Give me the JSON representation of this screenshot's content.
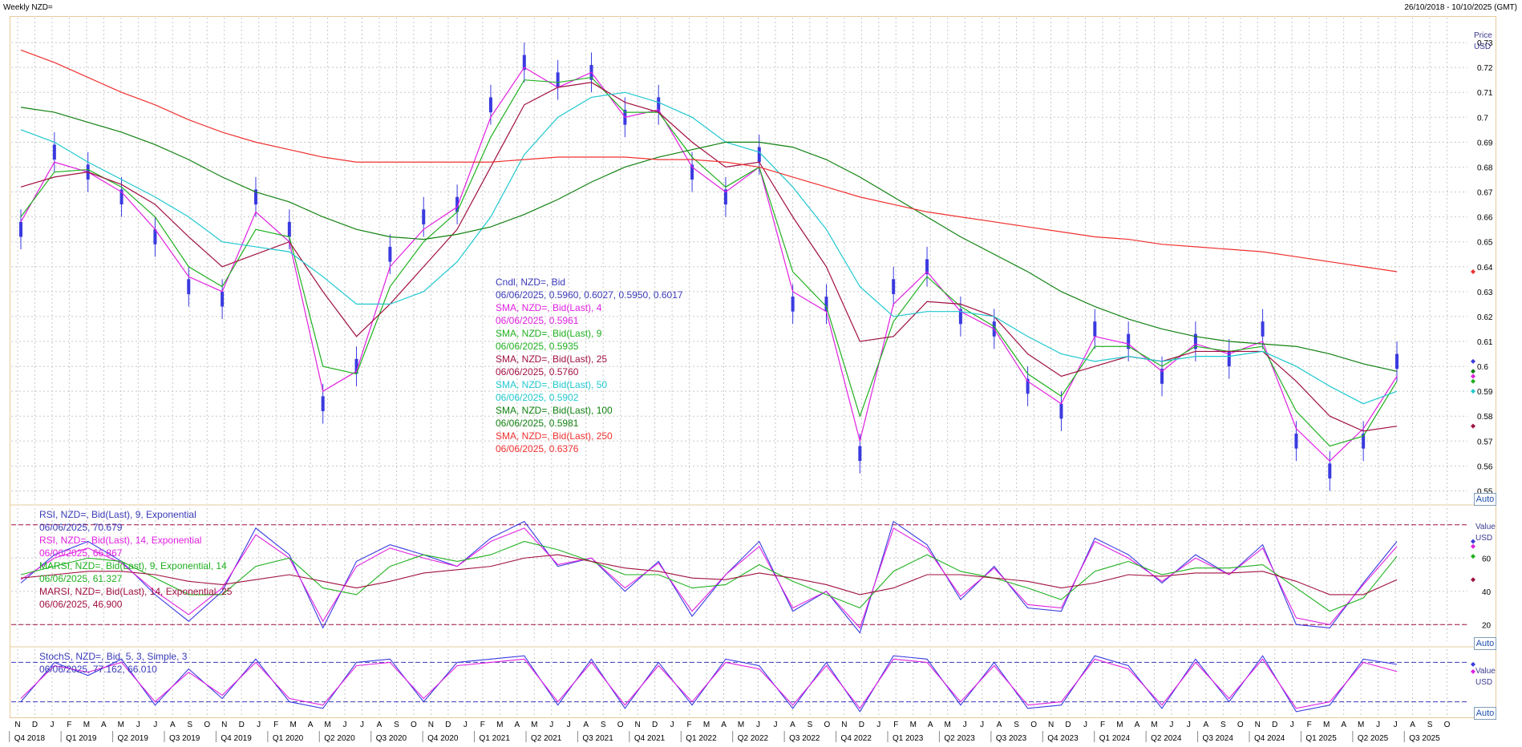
{
  "window": {
    "title": "Weekly NZD=",
    "date_range": "26/10/2018 - 10/10/2025 (GMT)"
  },
  "price_panel": {
    "unit_top": "Price",
    "unit_bottom": "USD",
    "auto_label": "Auto",
    "legend": [
      {
        "text": "Cndl, NZD=, Bid",
        "color": "#3a3ab8"
      },
      {
        "text": "06/06/2025, 0.5960, 0.6027, 0.5950, 0.6017",
        "color": "#3a3ab8"
      },
      {
        "text": "SMA, NZD=, Bid(Last), 4",
        "color": "#e020e0"
      },
      {
        "text": "06/06/2025, 0.5961",
        "color": "#e020e0"
      },
      {
        "text": "SMA, NZD=, Bid(Last), 9",
        "color": "#20b020"
      },
      {
        "text": "06/06/2025, 0.5935",
        "color": "#20b020"
      },
      {
        "text": "SMA, NZD=, Bid(Last), 25",
        "color": "#a01040"
      },
      {
        "text": "06/06/2025, 0.5760",
        "color": "#a01040"
      },
      {
        "text": "SMA, NZD=, Bid(Last), 50",
        "color": "#20c8d0"
      },
      {
        "text": "06/06/2025, 0.5902",
        "color": "#20c8d0"
      },
      {
        "text": "SMA, NZD=, Bid(Last), 100",
        "color": "#108010"
      },
      {
        "text": "06/06/2025, 0.5981",
        "color": "#108010"
      },
      {
        "text": "SMA, NZD=, Bid(Last), 250",
        "color": "#f03030"
      },
      {
        "text": "06/06/2025, 0.6376",
        "color": "#f03030"
      }
    ]
  },
  "rsi_panel": {
    "unit_top": "Value",
    "unit_bottom": "USD",
    "auto_label": "Auto",
    "legend": [
      {
        "text": "RSI, NZD=, Bid(Last), 9, Exponential",
        "color": "#3a3ab8"
      },
      {
        "text": "06/06/2025, 70.679",
        "color": "#3a3ab8"
      },
      {
        "text": "RSI, NZD=, Bid(Last), 14, Exponential",
        "color": "#e020e0"
      },
      {
        "text": "06/06/2025, 66.867",
        "color": "#e020e0"
      },
      {
        "text": "MARSI, NZD=, Bid(Last), 9, Exponential, 14",
        "color": "#20b020"
      },
      {
        "text": "06/06/2025, 61.327",
        "color": "#20b020"
      },
      {
        "text": "MARSI, NZD=, Bid(Last), 14, Exponential, 25",
        "color": "#a01040"
      },
      {
        "text": "06/06/2025, 46.900",
        "color": "#a01040"
      }
    ]
  },
  "stoch_panel": {
    "unit_top": "Value",
    "unit_bottom": "USD",
    "auto_label": "Auto",
    "legend": [
      {
        "text": "StochS, NZD=, Bid, 5, 3, Simple, 3",
        "color": "#3a3ab8"
      },
      {
        "text": "06/06/2025, 77.162, 66.010",
        "color": "#3a3ab8"
      }
    ]
  },
  "colors": {
    "candle": "#3a3ae0",
    "sma4": "#e020e0",
    "sma9": "#20b020",
    "sma25": "#a01040",
    "sma50": "#20c8d0",
    "sma100": "#108010",
    "sma250": "#f03030",
    "rsi9": "#3a3ae0",
    "rsi14": "#e020e0",
    "marsi9": "#20b020",
    "marsi14": "#a01040",
    "stoch_k": "#3a3ae0",
    "stoch_d": "#e020e0",
    "grid": "#c8c8c8",
    "frame": "#e7c99b"
  },
  "chart_data": [
    {
      "type": "line",
      "title": "Weekly NZD=",
      "ylabel": "Price USD",
      "ylim": [
        0.545,
        0.74
      ],
      "yticks": [
        0.55,
        0.56,
        0.57,
        0.58,
        0.59,
        0.6,
        0.61,
        0.62,
        0.63,
        0.64,
        0.65,
        0.66,
        0.67,
        0.68,
        0.69,
        0.7,
        0.71,
        0.72,
        0.73
      ],
      "grid": true,
      "x": [
        "2018-10",
        "2018-12",
        "2019-02",
        "2019-04",
        "2019-06",
        "2019-08",
        "2019-10",
        "2019-12",
        "2020-02",
        "2020-03",
        "2020-04",
        "2020-06",
        "2020-08",
        "2020-10",
        "2020-12",
        "2021-02",
        "2021-04",
        "2021-06",
        "2021-08",
        "2021-10",
        "2021-12",
        "2022-02",
        "2022-04",
        "2022-06",
        "2022-08",
        "2022-10",
        "2022-12",
        "2023-02",
        "2023-04",
        "2023-06",
        "2023-08",
        "2023-10",
        "2023-12",
        "2024-02",
        "2024-04",
        "2024-06",
        "2024-08",
        "2024-10",
        "2024-12",
        "2025-02",
        "2025-04",
        "2025-06"
      ],
      "series": [
        {
          "name": "Cndl, NZD=, Bid",
          "values": [
            0.655,
            0.686,
            0.678,
            0.668,
            0.652,
            0.632,
            0.627,
            0.668,
            0.655,
            0.585,
            0.6,
            0.645,
            0.66,
            0.665,
            0.705,
            0.722,
            0.715,
            0.718,
            0.7,
            0.705,
            0.678,
            0.668,
            0.685,
            0.625,
            0.625,
            0.565,
            0.632,
            0.64,
            0.62,
            0.615,
            0.592,
            0.582,
            0.615,
            0.61,
            0.596,
            0.61,
            0.603,
            0.615,
            0.57,
            0.558,
            0.57,
            0.602
          ]
        },
        {
          "name": "SMA, NZD=, Bid(Last), 4",
          "values": [
            0.658,
            0.682,
            0.678,
            0.67,
            0.655,
            0.636,
            0.63,
            0.662,
            0.65,
            0.59,
            0.598,
            0.64,
            0.655,
            0.664,
            0.7,
            0.72,
            0.712,
            0.718,
            0.7,
            0.703,
            0.68,
            0.67,
            0.68,
            0.63,
            0.622,
            0.57,
            0.625,
            0.638,
            0.622,
            0.615,
            0.594,
            0.585,
            0.612,
            0.609,
            0.598,
            0.609,
            0.605,
            0.61,
            0.575,
            0.562,
            0.575,
            0.596
          ]
        },
        {
          "name": "SMA, NZD=, Bid(Last), 9",
          "values": [
            0.66,
            0.678,
            0.679,
            0.672,
            0.66,
            0.64,
            0.632,
            0.655,
            0.652,
            0.6,
            0.597,
            0.632,
            0.65,
            0.662,
            0.692,
            0.715,
            0.714,
            0.716,
            0.702,
            0.702,
            0.684,
            0.672,
            0.68,
            0.638,
            0.624,
            0.58,
            0.618,
            0.636,
            0.624,
            0.616,
            0.597,
            0.588,
            0.608,
            0.608,
            0.6,
            0.608,
            0.606,
            0.608,
            0.582,
            0.568,
            0.572,
            0.594
          ]
        },
        {
          "name": "SMA, NZD=, Bid(Last), 25",
          "values": [
            0.672,
            0.676,
            0.678,
            0.673,
            0.665,
            0.652,
            0.64,
            0.645,
            0.65,
            0.63,
            0.612,
            0.625,
            0.64,
            0.655,
            0.68,
            0.705,
            0.712,
            0.714,
            0.706,
            0.702,
            0.69,
            0.68,
            0.682,
            0.66,
            0.64,
            0.61,
            0.612,
            0.626,
            0.625,
            0.62,
            0.605,
            0.596,
            0.6,
            0.604,
            0.602,
            0.606,
            0.606,
            0.606,
            0.594,
            0.58,
            0.574,
            0.576
          ]
        },
        {
          "name": "SMA, NZD=, Bid(Last), 50",
          "values": [
            0.695,
            0.69,
            0.682,
            0.675,
            0.668,
            0.66,
            0.65,
            0.648,
            0.646,
            0.636,
            0.625,
            0.625,
            0.63,
            0.642,
            0.66,
            0.685,
            0.7,
            0.708,
            0.71,
            0.706,
            0.7,
            0.69,
            0.686,
            0.672,
            0.655,
            0.632,
            0.62,
            0.622,
            0.622,
            0.62,
            0.612,
            0.605,
            0.602,
            0.604,
            0.602,
            0.604,
            0.604,
            0.606,
            0.6,
            0.592,
            0.585,
            0.59
          ]
        },
        {
          "name": "SMA, NZD=, Bid(Last), 100",
          "values": [
            0.704,
            0.702,
            0.698,
            0.694,
            0.689,
            0.683,
            0.676,
            0.67,
            0.666,
            0.66,
            0.655,
            0.652,
            0.651,
            0.653,
            0.656,
            0.661,
            0.667,
            0.674,
            0.68,
            0.684,
            0.687,
            0.69,
            0.69,
            0.688,
            0.683,
            0.676,
            0.668,
            0.66,
            0.652,
            0.645,
            0.638,
            0.63,
            0.624,
            0.619,
            0.615,
            0.612,
            0.61,
            0.609,
            0.608,
            0.605,
            0.601,
            0.598
          ]
        },
        {
          "name": "SMA, NZD=, Bid(Last), 250",
          "values": [
            0.727,
            0.722,
            0.716,
            0.71,
            0.705,
            0.699,
            0.694,
            0.69,
            0.687,
            0.684,
            0.682,
            0.682,
            0.682,
            0.682,
            0.682,
            0.683,
            0.684,
            0.684,
            0.684,
            0.683,
            0.683,
            0.682,
            0.68,
            0.676,
            0.672,
            0.668,
            0.665,
            0.662,
            0.66,
            0.658,
            0.656,
            0.654,
            0.652,
            0.651,
            0.649,
            0.648,
            0.647,
            0.646,
            0.644,
            0.642,
            0.64,
            0.638
          ]
        }
      ]
    },
    {
      "type": "line",
      "ylabel": "Value USD",
      "ylim": [
        10,
        90
      ],
      "yticks": [
        20,
        40,
        60
      ],
      "reference_lines": [
        20,
        80
      ],
      "series": [
        {
          "name": "RSI, NZD=, Bid(Last), 9, Exponential",
          "values": [
            45,
            62,
            70,
            58,
            38,
            22,
            40,
            78,
            62,
            18,
            58,
            68,
            62,
            55,
            72,
            82,
            55,
            60,
            40,
            58,
            25,
            50,
            70,
            28,
            40,
            15,
            82,
            68,
            35,
            55,
            30,
            28,
            72,
            62,
            45,
            62,
            50,
            68,
            20,
            18,
            45,
            70
          ]
        },
        {
          "name": "RSI, NZD=, Bid(Last), 14, Exponential",
          "values": [
            47,
            60,
            66,
            57,
            40,
            26,
            42,
            74,
            60,
            22,
            55,
            66,
            60,
            55,
            70,
            78,
            56,
            60,
            42,
            57,
            28,
            50,
            67,
            30,
            40,
            18,
            78,
            66,
            37,
            54,
            32,
            30,
            70,
            60,
            46,
            60,
            50,
            66,
            24,
            20,
            44,
            67
          ]
        },
        {
          "name": "MARSI, NZD=, Bid(Last), 9, Exponential, 14",
          "values": [
            50,
            55,
            60,
            58,
            48,
            38,
            38,
            55,
            60,
            42,
            38,
            55,
            62,
            58,
            62,
            70,
            65,
            58,
            50,
            50,
            42,
            44,
            56,
            46,
            38,
            30,
            52,
            62,
            52,
            48,
            42,
            35,
            52,
            58,
            50,
            54,
            54,
            56,
            42,
            28,
            36,
            61
          ]
        },
        {
          "name": "MARSI, NZD=, Bid(Last), 14, Exponential, 25",
          "values": [
            48,
            50,
            52,
            52,
            50,
            46,
            44,
            47,
            50,
            46,
            42,
            46,
            51,
            53,
            55,
            60,
            62,
            58,
            54,
            52,
            48,
            47,
            51,
            48,
            44,
            38,
            42,
            50,
            50,
            48,
            46,
            42,
            45,
            50,
            49,
            51,
            51,
            52,
            46,
            38,
            38,
            47
          ]
        }
      ]
    },
    {
      "type": "line",
      "ylabel": "Value USD",
      "ylim": [
        0,
        100
      ],
      "reference_lines": [
        20,
        80
      ],
      "series": [
        {
          "name": "StochS %K, NZD=, Bid, 5, 3, Simple, 3",
          "values": [
            20,
            80,
            60,
            85,
            15,
            70,
            25,
            85,
            20,
            10,
            80,
            85,
            20,
            80,
            85,
            90,
            15,
            85,
            10,
            80,
            15,
            85,
            75,
            10,
            80,
            5,
            90,
            85,
            15,
            80,
            10,
            15,
            90,
            75,
            10,
            85,
            20,
            90,
            5,
            15,
            85,
            77
          ]
        },
        {
          "name": "StochS %D, NZD=, Bid, 5, 3, Simple, 3",
          "values": [
            25,
            75,
            65,
            80,
            20,
            65,
            30,
            80,
            25,
            15,
            75,
            80,
            25,
            75,
            80,
            85,
            20,
            80,
            15,
            75,
            20,
            80,
            70,
            15,
            75,
            10,
            85,
            80,
            20,
            75,
            15,
            20,
            85,
            70,
            15,
            80,
            25,
            85,
            10,
            20,
            80,
            66
          ]
        }
      ]
    }
  ],
  "x_axis": {
    "month_ticks": [
      "N",
      "D",
      "J",
      "F",
      "M",
      "A",
      "M",
      "J",
      "J",
      "A",
      "S",
      "O",
      "N",
      "D",
      "J",
      "F",
      "M",
      "A",
      "M",
      "J",
      "J",
      "A",
      "S",
      "O",
      "N",
      "D",
      "J",
      "F",
      "M",
      "A",
      "M",
      "J",
      "J",
      "A",
      "S",
      "O",
      "N",
      "D",
      "J",
      "F",
      "M",
      "A",
      "M",
      "J",
      "J",
      "A",
      "S",
      "O",
      "N",
      "D",
      "J",
      "F",
      "M",
      "A",
      "M",
      "J",
      "J",
      "A",
      "S",
      "O",
      "N",
      "D",
      "J",
      "F",
      "M",
      "A",
      "M",
      "J",
      "J",
      "A",
      "S",
      "O",
      "N",
      "D",
      "J",
      "F",
      "M",
      "A",
      "M",
      "J",
      "J",
      "A",
      "S",
      "O"
    ],
    "quarter_labels": [
      "Q4 2018",
      "Q1 2019",
      "Q2 2019",
      "Q3 2019",
      "Q4 2019",
      "Q1 2020",
      "Q2 2020",
      "Q3 2020",
      "Q4 2020",
      "Q1 2021",
      "Q2 2021",
      "Q3 2021",
      "Q4 2021",
      "Q1 2022",
      "Q2 2022",
      "Q3 2022",
      "Q4 2022",
      "Q1 2023",
      "Q2 2023",
      "Q3 2023",
      "Q4 2023",
      "Q1 2024",
      "Q2 2024",
      "Q3 2024",
      "Q4 2024",
      "Q1 2025",
      "Q2 2025",
      "Q3 2025"
    ]
  }
}
